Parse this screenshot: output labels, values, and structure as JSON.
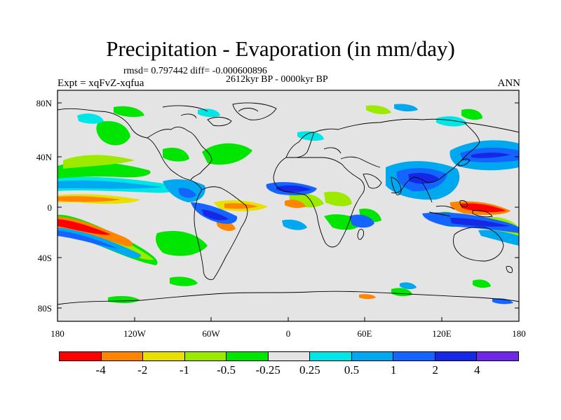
{
  "title": "Precipitation - Evaporation (in mm/day)",
  "stats": "rmsd= 0.797442 diff= -0.000600896",
  "period": "2612kyr BP - 0000kyr BP",
  "experiment": "Expt = xqFvZ-xqfua",
  "season": "ANN",
  "map": {
    "lat_ticks": [
      "80N",
      "40N",
      "0",
      "40S",
      "80S"
    ],
    "lon_ticks": [
      "180",
      "120W",
      "60W",
      "0",
      "60E",
      "120E",
      "180"
    ],
    "background_color": "#e4e4e4"
  },
  "colorbar": {
    "colors": [
      "#ff0000",
      "#ff8400",
      "#e8e000",
      "#9cea00",
      "#00e600",
      "#e4e4e4",
      "#00e6e6",
      "#00a8f0",
      "#1464ff",
      "#1428e6",
      "#6e28e6"
    ],
    "labels": [
      "-4",
      "-2",
      "-1",
      "-0.5",
      "-0.25",
      "0.25",
      "0.5",
      "1",
      "2",
      "4"
    ]
  }
}
